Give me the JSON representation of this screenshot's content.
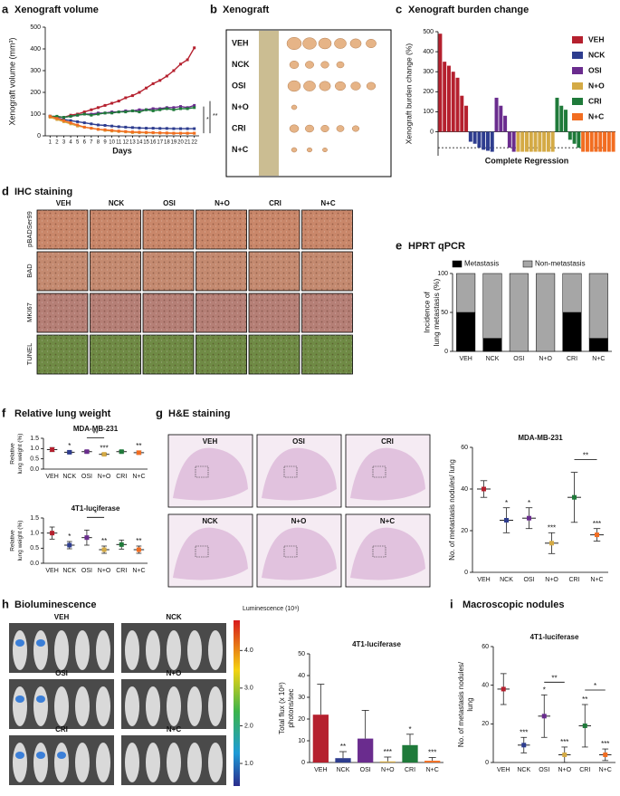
{
  "panels": [
    {
      "label": "a",
      "title": "Xenograft volume",
      "chart_data": {
        "type": "line",
        "xlabel": "Days",
        "ylabel": "Xenograft volume (mm³)",
        "x": [
          1,
          2,
          3,
          4,
          5,
          6,
          7,
          8,
          9,
          10,
          11,
          12,
          13,
          14,
          15,
          16,
          17,
          18,
          19,
          20,
          21,
          22
        ],
        "xlim": [
          0.3,
          22.7
        ],
        "xticks": [
          1,
          2,
          3,
          4,
          5,
          6,
          7,
          8,
          9,
          10,
          11,
          12,
          13,
          14,
          15,
          16,
          17,
          18,
          19,
          20,
          21,
          22
        ],
        "ylim": [
          0,
          500
        ],
        "yticks": [
          0,
          100,
          200,
          300,
          400,
          500
        ],
        "series": [
          {
            "name": "VEH",
            "color": "#b5202e",
            "values": [
              90,
              85,
              85,
              95,
              100,
              110,
              120,
              130,
              140,
              150,
              160,
              175,
              185,
              200,
              220,
              240,
              255,
              275,
              300,
              330,
              350,
              405
            ]
          },
          {
            "name": "NCK",
            "color": "#2e3d8f",
            "values": [
              90,
              80,
              75,
              70,
              65,
              60,
              55,
              50,
              48,
              45,
              42,
              40,
              38,
              36,
              35,
              35,
              34,
              34,
              33,
              33,
              33,
              33
            ]
          },
          {
            "name": "OSI",
            "color": "#6a2c8e",
            "values": [
              90,
              88,
              85,
              90,
              95,
              100,
              100,
              105,
              105,
              110,
              110,
              115,
              115,
              120,
              120,
              125,
              125,
              130,
              130,
              135,
              130,
              140
            ]
          },
          {
            "name": "N+O",
            "color": "#d4aa45",
            "values": [
              85,
              75,
              65,
              55,
              45,
              40,
              35,
              30,
              25,
              22,
              20,
              18,
              15,
              15,
              14,
              14,
              13,
              13,
              12,
              12,
              12,
              12
            ]
          },
          {
            "name": "CRI",
            "color": "#1f7a3a",
            "values": [
              90,
              90,
              85,
              90,
              95,
              100,
              95,
              100,
              105,
              105,
              110,
              110,
              115,
              110,
              120,
              115,
              120,
              125,
              120,
              125,
              125,
              130
            ]
          },
          {
            "name": "N+C",
            "color": "#f26d21",
            "values": [
              90,
              80,
              70,
              60,
              50,
              40,
              35,
              30,
              28,
              25,
              22,
              20,
              18,
              17,
              16,
              15,
              14,
              13,
              12,
              12,
              12,
              12
            ]
          }
        ],
        "annotations": [
          "*",
          "**"
        ]
      }
    },
    {
      "label": "b",
      "title": "Xenograft",
      "rows": [
        "VEH",
        "NCK",
        "OSI",
        "N+O",
        "CRI",
        "N+C"
      ]
    },
    {
      "label": "c",
      "title": "Xenograft burden change",
      "chart_data": {
        "type": "waterfall",
        "ylabel": "Xenograft burden change (%)",
        "annotation": "Complete Regression",
        "ylim": [
          -120,
          500
        ],
        "yticks": [
          0,
          100,
          200,
          300,
          400,
          500
        ],
        "hline": -80,
        "legend": "right",
        "series": [
          {
            "name": "VEH",
            "color": "#b5202e",
            "values": [
              490,
              350,
              330,
              300,
              270,
              180,
              130
            ]
          },
          {
            "name": "NCK",
            "color": "#2e3d8f",
            "values": [
              -50,
              -60,
              -80,
              -90,
              -95,
              -100
            ]
          },
          {
            "name": "OSI",
            "color": "#6a2c8e",
            "values": [
              170,
              130,
              80,
              -80,
              -100
            ]
          },
          {
            "name": "N+O",
            "color": "#d4aa45",
            "values": [
              -100,
              -100,
              -100,
              -100,
              -100,
              -100,
              -100,
              -100,
              -100
            ]
          },
          {
            "name": "CRI",
            "color": "#1f7a3a",
            "values": [
              170,
              130,
              110,
              -40,
              -60,
              -80
            ]
          },
          {
            "name": "N+C",
            "color": "#f26d21",
            "values": [
              -100,
              -100,
              -100,
              -100,
              -100,
              -100,
              -100,
              -100
            ]
          }
        ]
      }
    },
    {
      "label": "d",
      "title": "IHC staining",
      "columns": [
        "VEH",
        "NCK",
        "OSI",
        "N+O",
        "CRI",
        "N+C"
      ],
      "rows": [
        "pBADSer99",
        "BAD",
        "MKI67",
        "TUNEL"
      ]
    },
    {
      "label": "e",
      "title": "HPRT qPCR",
      "chart_data": {
        "type": "stacked_bar",
        "ylabel": [
          "Incidence of",
          "lung metastasis (%)"
        ],
        "legend": "top",
        "categories": [
          "VEH",
          "NCK",
          "OSI",
          "N+O",
          "CRI",
          "N+C"
        ],
        "ylim": [
          0,
          100
        ],
        "yticks": [
          0,
          50,
          100
        ],
        "series": [
          {
            "name": "Metastasis",
            "color": "#000000",
            "values": [
              50,
              16.7,
              0,
              0,
              50,
              16.7
            ]
          },
          {
            "name": "Non-metastasis",
            "color": "#a6a6a6",
            "values": [
              50,
              83.3,
              100,
              100,
              50,
              83.3
            ]
          }
        ]
      }
    },
    {
      "label": "f",
      "title": "Relative lung weight",
      "chart_data": [
        {
          "type": "dot",
          "title": "MDA-MB-231",
          "ylabel": [
            "Relative",
            "lung weight (%)"
          ],
          "categories": [
            "VEH",
            "NCK",
            "OSI",
            "N+O",
            "CRI",
            "N+C"
          ],
          "colors": [
            "#b5202e",
            "#2e3d8f",
            "#6a2c8e",
            "#d4aa45",
            "#1f7a3a",
            "#f26d21"
          ],
          "ylim": [
            0,
            1.5
          ],
          "yticks": [
            {
              "value": 0,
              "label": "0.0"
            },
            {
              "value": 0.5,
              "label": "0.5"
            },
            {
              "value": 1,
              "label": "1.0"
            },
            {
              "value": 1.5,
              "label": "1.5"
            }
          ],
          "values": [
            0.95,
            0.82,
            0.85,
            0.72,
            0.85,
            0.8
          ],
          "errors": [
            0.1,
            0.06,
            0.06,
            0.05,
            0.06,
            0.08
          ],
          "annotations": [
            null,
            "*",
            null,
            "***",
            null,
            "**"
          ],
          "brackets": [
            {
              "categories": [
                "OSI",
                "N+O"
              ],
              "label": "**"
            }
          ]
        },
        {
          "type": "dot",
          "title": "4T1-luciferase",
          "ylabel": [
            "Relative",
            "lung weight (%)"
          ],
          "categories": [
            "VEH",
            "NCK",
            "OSI",
            "N+O",
            "CRI",
            "N+C"
          ],
          "colors": [
            "#b5202e",
            "#2e3d8f",
            "#6a2c8e",
            "#d4aa45",
            "#1f7a3a",
            "#f26d21"
          ],
          "ylim": [
            0,
            1.5
          ],
          "yticks": [
            {
              "value": 0,
              "label": "0.0"
            },
            {
              "value": 0.5,
              "label": "0.5"
            },
            {
              "value": 1,
              "label": "1.0"
            },
            {
              "value": 1.5,
              "label": "1.5"
            }
          ],
          "values": [
            1.0,
            0.6,
            0.85,
            0.45,
            0.62,
            0.45
          ],
          "errors": [
            0.2,
            0.12,
            0.25,
            0.12,
            0.15,
            0.12
          ],
          "annotations": [
            null,
            "*",
            null,
            "**",
            null,
            "**"
          ],
          "brackets": [
            {
              "categories": [
                "OSI",
                "N+O"
              ],
              "label": "*"
            }
          ]
        }
      ]
    },
    {
      "label": "g",
      "title": "H&E staining",
      "images": [
        "VEH",
        "OSI",
        "CRI",
        "NCK",
        "N+O",
        "N+C"
      ],
      "chart_data": {
        "type": "dot",
        "title": "MDA-MB-231",
        "ylabel": "No. of metastasis nodules/ lung",
        "categories": [
          "VEH",
          "NCK",
          "OSI",
          "N+O",
          "CRI",
          "N+C"
        ],
        "colors": [
          "#b5202e",
          "#2e3d8f",
          "#6a2c8e",
          "#d4aa45",
          "#1f7a3a",
          "#f26d21"
        ],
        "ylim": [
          0,
          60
        ],
        "yticks": [
          0,
          20,
          40,
          60
        ],
        "values": [
          40,
          25,
          26,
          14,
          36,
          18
        ],
        "errors": [
          4,
          6,
          5,
          5,
          12,
          3
        ],
        "annotations": [
          null,
          "*",
          "*",
          "***",
          null,
          "***"
        ],
        "brackets": [
          {
            "categories": [
              "CRI",
              "N+C"
            ],
            "label": "**"
          }
        ]
      }
    },
    {
      "label": "h",
      "title": "Bioluminescence",
      "images": [
        "VEH",
        "NCK",
        "OSI",
        "N+O",
        "CRI",
        "N+C"
      ],
      "colorbar": {
        "label": "Luminescence (10⁸)",
        "lim": [
          0.4,
          4.8
        ],
        "ticks": [
          {
            "value": 1,
            "label": "1.0"
          },
          {
            "value": 2,
            "label": "2.0"
          },
          {
            "value": 3,
            "label": "3.0"
          },
          {
            "value": 4,
            "label": "4.0"
          }
        ]
      },
      "chart_data": {
        "type": "bar",
        "title": "4T1-luciferase",
        "ylabel": [
          "Total flux (x 10⁸)",
          "photons/sec"
        ],
        "categories": [
          "VEH",
          "NCK",
          "OSI",
          "N+O",
          "CRI",
          "N+C"
        ],
        "colors": [
          "#b5202e",
          "#2e3d8f",
          "#6a2c8e",
          "#d4aa45",
          "#1f7a3a",
          "#f26d21"
        ],
        "ylim": [
          0,
          50
        ],
        "yticks": [
          0,
          10,
          20,
          30,
          40,
          50
        ],
        "values": [
          22,
          2,
          11,
          0.5,
          8,
          0.8
        ],
        "errors": [
          14,
          3,
          13,
          2,
          5,
          1.5
        ],
        "annotations": [
          null,
          "**",
          null,
          "***",
          "*",
          "***"
        ]
      }
    },
    {
      "label": "i",
      "title": "Macroscopic nodules",
      "chart_data": {
        "type": "dot",
        "title": "4T1-luciferase",
        "ylabel": [
          "No. of metastasis nodules/",
          "lung"
        ],
        "categories": [
          "VEH",
          "NCK",
          "OSI",
          "N+O",
          "CRI",
          "N+C"
        ],
        "colors": [
          "#b5202e",
          "#2e3d8f",
          "#6a2c8e",
          "#d4aa45",
          "#1f7a3a",
          "#f26d21"
        ],
        "ylim": [
          0,
          60
        ],
        "yticks": [
          0,
          20,
          40,
          60
        ],
        "values": [
          38,
          9,
          24,
          4,
          19,
          4
        ],
        "errors": [
          8,
          4,
          11,
          4,
          11,
          3
        ],
        "annotations": [
          null,
          "***",
          "*",
          "***",
          "**",
          "***"
        ],
        "brackets": [
          {
            "categories": [
              "OSI",
              "N+O"
            ],
            "label": "**"
          },
          {
            "categories": [
              "CRI",
              "N+C"
            ],
            "label": "*"
          }
        ]
      }
    }
  ]
}
